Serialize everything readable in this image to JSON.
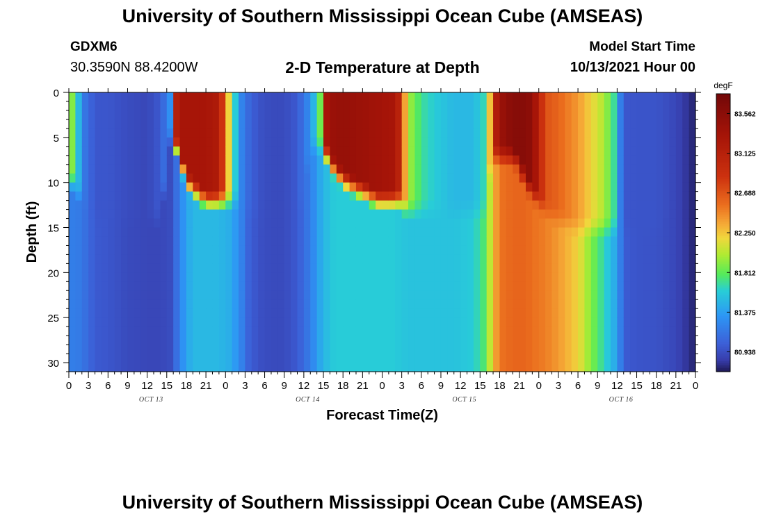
{
  "header": {
    "title": "University of Southern Mississippi Ocean Cube (AMSEAS)",
    "station": "GDXM6",
    "coords": "30.3590N  88.4200W",
    "subtitle": "2-D Temperature at Depth",
    "model_start_label": "Model Start Time",
    "model_start_value": "10/13/2021 Hour 00"
  },
  "footer": {
    "title": "University of Southern Mississippi Ocean Cube (AMSEAS)"
  },
  "chart_data": {
    "type": "heatmap",
    "title": "2-D Temperature at Depth",
    "xlabel": "Forecast Time(Z)",
    "ylabel": "Depth (ft)",
    "x_range_hours": [
      0,
      96
    ],
    "y_range_ft": [
      0,
      31
    ],
    "y_ticks": [
      0,
      5,
      10,
      15,
      20,
      25,
      30
    ],
    "x_tick_labels": [
      "0",
      "3",
      "6",
      "9",
      "12",
      "15",
      "18",
      "21",
      "0",
      "3",
      "6",
      "9",
      "12",
      "15",
      "18",
      "21",
      "0",
      "3",
      "6",
      "9",
      "12",
      "15",
      "18",
      "21",
      "0",
      "3",
      "6",
      "9",
      "12",
      "15",
      "18",
      "21",
      "0"
    ],
    "date_labels": [
      {
        "label": "OCT 13",
        "hour": 11
      },
      {
        "label": "OCT 14",
        "hour": 35
      },
      {
        "label": "OCT 15",
        "hour": 59
      },
      {
        "label": "OCT 16",
        "hour": 83
      }
    ],
    "colorbar": {
      "unit": "degF",
      "min": 80.72,
      "max": 83.78,
      "ticks": [
        "83.562",
        "83.125",
        "82.688",
        "82.250",
        "81.812",
        "81.375",
        "80.938"
      ],
      "tick_values": [
        83.562,
        83.125,
        82.688,
        82.25,
        81.812,
        81.375,
        80.938
      ]
    },
    "profile_hours": [
      0,
      0.5,
      1.2,
      2.5,
      4,
      6,
      9,
      12,
      14,
      15.5,
      16.3,
      17,
      18,
      19.5,
      21,
      23,
      24.5,
      26,
      27.5,
      29,
      31,
      33,
      35,
      37,
      38.5,
      39.5,
      40.2,
      41,
      42.5,
      45,
      47.5,
      49.5,
      50.5,
      52,
      54,
      56,
      59,
      62,
      64,
      64.8,
      65.5,
      66.5,
      68,
      69,
      70,
      71,
      73,
      75,
      78,
      80,
      82,
      83.5,
      84.5,
      85.5,
      87,
      90,
      93,
      95,
      96
    ],
    "profile_surface": [
      81.95,
      81.9,
      81.6,
      81.15,
      80.98,
      80.98,
      80.93,
      80.9,
      81.0,
      81.3,
      83.1,
      83.3,
      83.3,
      83.3,
      83.3,
      83.2,
      82.2,
      81.3,
      81.08,
      80.96,
      80.92,
      80.92,
      81.0,
      81.3,
      81.85,
      83.3,
      83.4,
      83.45,
      83.45,
      83.4,
      83.35,
      83.3,
      83.1,
      82.0,
      81.7,
      81.6,
      81.5,
      81.5,
      81.7,
      82.6,
      83.2,
      83.45,
      83.6,
      83.6,
      83.6,
      83.5,
      82.7,
      82.6,
      82.4,
      82.2,
      82.0,
      81.7,
      81.2,
      80.98,
      80.97,
      80.97,
      80.9,
      80.8,
      80.75
    ],
    "profile_bottom": [
      81.2,
      81.2,
      81.2,
      81.12,
      81.0,
      80.98,
      80.92,
      80.9,
      80.9,
      80.93,
      81.08,
      81.2,
      81.42,
      81.5,
      81.5,
      81.5,
      81.45,
      81.3,
      81.05,
      80.95,
      80.92,
      80.92,
      81.0,
      81.2,
      81.42,
      81.52,
      81.58,
      81.6,
      81.6,
      81.6,
      81.6,
      81.6,
      81.58,
      81.55,
      81.55,
      81.55,
      81.55,
      81.6,
      81.8,
      82.2,
      82.4,
      82.55,
      82.6,
      82.6,
      82.6,
      82.55,
      82.5,
      82.4,
      82.2,
      81.9,
      81.65,
      81.45,
      81.2,
      81.0,
      80.97,
      80.96,
      80.9,
      80.8,
      80.75
    ],
    "profile_mix_depth_ft": [
      9,
      9,
      10,
      11,
      13,
      13,
      13,
      13,
      13,
      4,
      5,
      6,
      9,
      10,
      11,
      11,
      11,
      11,
      12,
      13,
      13,
      13,
      13,
      5,
      5,
      6,
      7,
      8,
      9,
      10,
      11,
      11,
      11,
      12,
      12,
      12,
      12,
      12,
      12,
      5,
      6,
      6,
      6,
      7,
      9,
      10,
      12,
      13,
      14,
      14,
      14,
      14,
      14,
      14,
      14,
      14,
      14,
      14,
      14
    ]
  }
}
